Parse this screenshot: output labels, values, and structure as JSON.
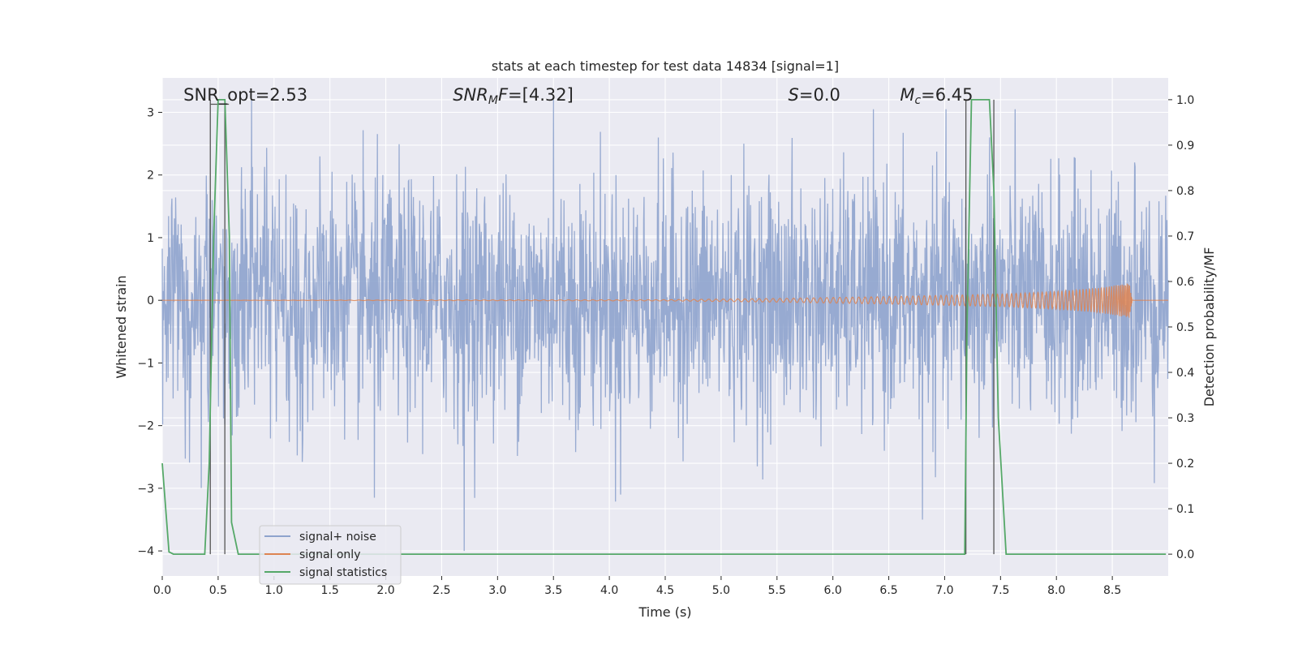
{
  "chart_data": {
    "type": "line",
    "title": "stats at each timestep for test data 14834 [signal=1]",
    "xlabel": "Time (s)",
    "ylabel": "Whitened strain",
    "ylabel_right": "Detection probability/MF",
    "xlim": [
      0,
      9.0
    ],
    "ylim": [
      -4.4,
      3.55
    ],
    "ylim_right": [
      -0.048,
      1.048
    ],
    "x_ticks": [
      0.0,
      0.5,
      1.0,
      1.5,
      2.0,
      2.5,
      3.0,
      3.5,
      4.0,
      4.5,
      5.0,
      5.5,
      6.0,
      6.5,
      7.0,
      7.5,
      8.0,
      8.5
    ],
    "x_tick_labels": [
      "0.0",
      "0.5",
      "1.0",
      "1.5",
      "2.0",
      "2.5",
      "3.0",
      "3.5",
      "4.0",
      "4.5",
      "5.0",
      "5.5",
      "6.0",
      "6.5",
      "7.0",
      "7.5",
      "8.0",
      "8.5"
    ],
    "y_ticks": [
      3,
      2,
      1,
      0,
      -1,
      -2,
      -3,
      -4
    ],
    "y_tick_labels": [
      "3",
      "2",
      "1",
      "0",
      "−1",
      "−2",
      "−3",
      "−4"
    ],
    "y_ticks_right": [
      1.0,
      0.9,
      0.8,
      0.7,
      0.6,
      0.5,
      0.4,
      0.3,
      0.2,
      0.1,
      0.0
    ],
    "y_tick_labels_right": [
      "1.0",
      "0.9",
      "0.8",
      "0.7",
      "0.6",
      "0.5",
      "0.4",
      "0.3",
      "0.2",
      "0.1",
      "0.0"
    ],
    "grid": true,
    "legend_position": "lower-left",
    "annotations": [
      {
        "x": 0.19,
        "html": "SNR_opt=2.53"
      },
      {
        "x": 2.6,
        "html": "<tspan font-style='italic'>SNR</tspan><tspan font-style='italic' font-size='14' dy='4'>M</tspan><tspan font-style='italic' dy='-4'>F</tspan>=[4.32]"
      },
      {
        "x": 5.6,
        "html": "<tspan font-style='italic'>S</tspan>=0.0"
      },
      {
        "x": 6.6,
        "html": "<tspan font-style='italic'>M</tspan><tspan font-style='italic' font-size='14' dy='4'>c</tspan><tspan dy='-4'>=6.45</tspan>"
      }
    ],
    "series": [
      {
        "name": "signal+ noise",
        "color": "#8ea3cd",
        "axis": "left",
        "description_points": "noise band roughly ±2 with spikes up to ~3.2 and down to ~-4.0 across 0–9 s",
        "extremes": [
          {
            "x": 0.8,
            "y": 3.2
          },
          {
            "x": 3.5,
            "y": 3.2
          },
          {
            "x": 2.7,
            "y": -4.0
          },
          {
            "x": 1.9,
            "y": -3.15
          },
          {
            "x": 4.1,
            "y": -3.1
          },
          {
            "x": 6.8,
            "y": -3.5
          },
          {
            "x": 7.4,
            "y": 2.6
          },
          {
            "x": 8.7,
            "y": 2.2
          }
        ]
      },
      {
        "name": "signal only",
        "color": "#dd8452",
        "axis": "left",
        "description_points": "chirp near 0, growing amplitude from ~5.0 s to ~0.3 at 8.65 s, then ends",
        "envelope": [
          [
            0.0,
            0.0
          ],
          [
            4.5,
            0.01
          ],
          [
            5.5,
            0.03
          ],
          [
            6.5,
            0.06
          ],
          [
            7.5,
            0.1
          ],
          [
            8.0,
            0.14
          ],
          [
            8.4,
            0.2
          ],
          [
            8.65,
            0.28
          ],
          [
            8.68,
            0.0
          ]
        ]
      },
      {
        "name": "signal statistics",
        "color": "#55a868",
        "axis": "right",
        "points": [
          [
            0.0,
            0.2
          ],
          [
            0.06,
            0.005
          ],
          [
            0.1,
            0.0
          ],
          [
            0.38,
            0.0
          ],
          [
            0.42,
            0.2
          ],
          [
            0.46,
            0.7
          ],
          [
            0.5,
            1.0
          ],
          [
            0.56,
            1.0
          ],
          [
            0.6,
            0.7
          ],
          [
            0.62,
            0.07
          ],
          [
            0.68,
            0.0
          ],
          [
            7.18,
            0.0
          ],
          [
            7.2,
            0.5
          ],
          [
            7.24,
            1.0
          ],
          [
            7.4,
            1.0
          ],
          [
            7.44,
            0.8
          ],
          [
            7.48,
            0.3
          ],
          [
            7.55,
            0.0
          ],
          [
            8.98,
            0.0
          ]
        ]
      }
    ],
    "vertical_markers": [
      {
        "x": 0.43,
        "y_top": 1.0
      },
      {
        "x": 0.56,
        "y_top": 1.0
      },
      {
        "x": 7.19,
        "y_top": 1.0
      },
      {
        "x": 7.44,
        "y_top": 1.0
      }
    ],
    "colors": {
      "background": "#eaeaf2",
      "grid": "#ffffff",
      "marker": "#555555"
    }
  }
}
